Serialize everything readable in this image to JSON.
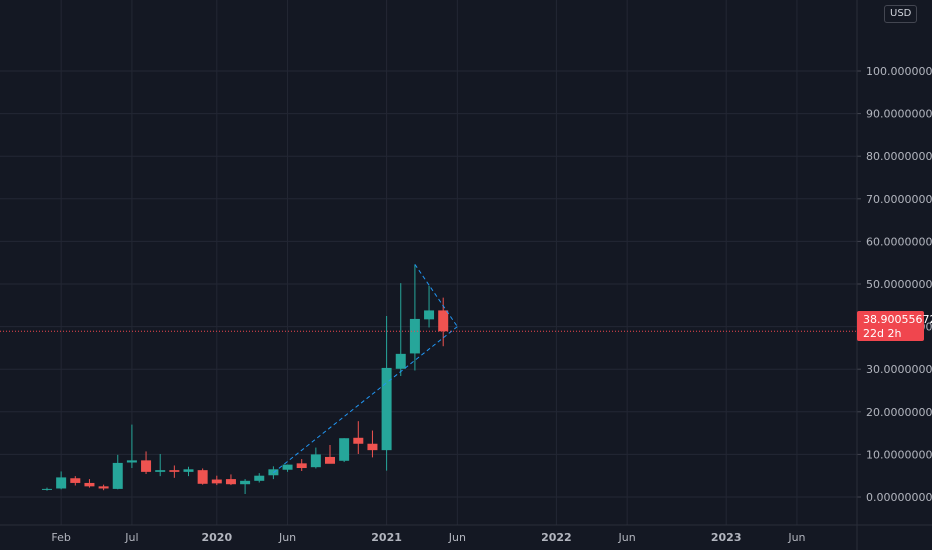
{
  "header": {
    "currency": "USD"
  },
  "last_price": {
    "value": "38.90055672",
    "countdown": "22d 2h",
    "color": "#f0464e"
  },
  "colors": {
    "up": "#26a69a",
    "down": "#ef5350",
    "background": "#141823",
    "grid": "#232734",
    "trendline": "#2196f3"
  },
  "chart_data": {
    "type": "candlestick",
    "title": "",
    "xlabel": "",
    "ylabel": "",
    "ylim": [
      -3,
      105
    ],
    "y_ticks": [
      "0.00000000",
      "10.00000000",
      "20.00000000",
      "30.00000000",
      "40.00000000",
      "50.00000000",
      "60.00000000",
      "70.00000000",
      "80.00000000",
      "90.00000000",
      "100.00000000"
    ],
    "x_ticks": [
      {
        "label": "Feb",
        "month": "2019-02",
        "major": false
      },
      {
        "label": "Jul",
        "month": "2019-07",
        "major": false
      },
      {
        "label": "2020",
        "month": "2020-01",
        "major": true
      },
      {
        "label": "Jun",
        "month": "2020-06",
        "major": false
      },
      {
        "label": "2021",
        "month": "2021-01",
        "major": true
      },
      {
        "label": "Jun",
        "month": "2021-06",
        "major": false
      },
      {
        "label": "2022",
        "month": "2022-01",
        "major": true
      },
      {
        "label": "Jun",
        "month": "2022-06",
        "major": false
      },
      {
        "label": "2023",
        "month": "2023-01",
        "major": true
      },
      {
        "label": "Jun",
        "month": "2023-06",
        "major": false
      }
    ],
    "candles": [
      {
        "month": "2019-01",
        "open": 1.8,
        "high": 2.2,
        "low": 1.5,
        "close": 1.9
      },
      {
        "month": "2019-02",
        "open": 2.0,
        "high": 6.0,
        "low": 1.8,
        "close": 4.6
      },
      {
        "month": "2019-03",
        "open": 4.4,
        "high": 4.9,
        "low": 2.7,
        "close": 3.3
      },
      {
        "month": "2019-04",
        "open": 3.3,
        "high": 4.2,
        "low": 2.2,
        "close": 2.5
      },
      {
        "month": "2019-05",
        "open": 2.5,
        "high": 2.9,
        "low": 1.6,
        "close": 2.0
      },
      {
        "month": "2019-06",
        "open": 1.9,
        "high": 9.9,
        "low": 1.8,
        "close": 8.0
      },
      {
        "month": "2019-07",
        "open": 8.1,
        "high": 17.0,
        "low": 6.8,
        "close": 8.6
      },
      {
        "month": "2019-08",
        "open": 8.6,
        "high": 10.7,
        "low": 5.4,
        "close": 5.9
      },
      {
        "month": "2019-09",
        "open": 5.9,
        "high": 10.1,
        "low": 4.9,
        "close": 6.3
      },
      {
        "month": "2019-10",
        "open": 6.3,
        "high": 7.4,
        "low": 4.5,
        "close": 5.9
      },
      {
        "month": "2019-11",
        "open": 5.9,
        "high": 7.1,
        "low": 4.9,
        "close": 6.5
      },
      {
        "month": "2019-12",
        "open": 6.3,
        "high": 6.7,
        "low": 2.9,
        "close": 3.1
      },
      {
        "month": "2020-01",
        "open": 4.1,
        "high": 5.0,
        "low": 2.8,
        "close": 3.2
      },
      {
        "month": "2020-02",
        "open": 4.2,
        "high": 5.3,
        "low": 2.8,
        "close": 3.0
      },
      {
        "month": "2020-03",
        "open": 3.0,
        "high": 4.2,
        "low": 0.7,
        "close": 3.8
      },
      {
        "month": "2020-04",
        "open": 3.8,
        "high": 5.6,
        "low": 3.4,
        "close": 5.0
      },
      {
        "month": "2020-05",
        "open": 5.1,
        "high": 7.2,
        "low": 4.2,
        "close": 6.5
      },
      {
        "month": "2020-06",
        "open": 6.4,
        "high": 7.6,
        "low": 5.9,
        "close": 7.6
      },
      {
        "month": "2020-07",
        "open": 7.9,
        "high": 8.9,
        "low": 6.1,
        "close": 6.8
      },
      {
        "month": "2020-08",
        "open": 7.0,
        "high": 11.6,
        "low": 6.7,
        "close": 10.0
      },
      {
        "month": "2020-09",
        "open": 9.4,
        "high": 12.2,
        "low": 8.5,
        "close": 7.8
      },
      {
        "month": "2020-10",
        "open": 8.5,
        "high": 13.8,
        "low": 8.2,
        "close": 13.8
      },
      {
        "month": "2020-11",
        "open": 13.9,
        "high": 17.8,
        "low": 10.1,
        "close": 12.5
      },
      {
        "month": "2020-12",
        "open": 12.5,
        "high": 15.6,
        "low": 9.3,
        "close": 11.0
      },
      {
        "month": "2021-01",
        "open": 11.0,
        "high": 42.5,
        "low": 6.2,
        "close": 30.3
      },
      {
        "month": "2021-02",
        "open": 30.1,
        "high": 50.2,
        "low": 28.4,
        "close": 33.6
      },
      {
        "month": "2021-03",
        "open": 33.7,
        "high": 54.6,
        "low": 29.7,
        "close": 41.8
      },
      {
        "month": "2021-04",
        "open": 41.7,
        "high": 49.6,
        "low": 39.8,
        "close": 43.8
      },
      {
        "month": "2021-05",
        "open": 43.8,
        "high": 46.8,
        "low": 35.4,
        "close": 38.9
      }
    ],
    "annotations": [
      {
        "type": "dashed-trendline",
        "from": {
          "month": "2020-05",
          "value": 5.7
        },
        "to": {
          "month": "2021-06",
          "value": 40.0
        }
      },
      {
        "type": "dashed-trendline",
        "from": {
          "month": "2021-03",
          "value": 54.6
        },
        "to": {
          "month": "2021-06",
          "value": 40.0
        }
      }
    ]
  }
}
